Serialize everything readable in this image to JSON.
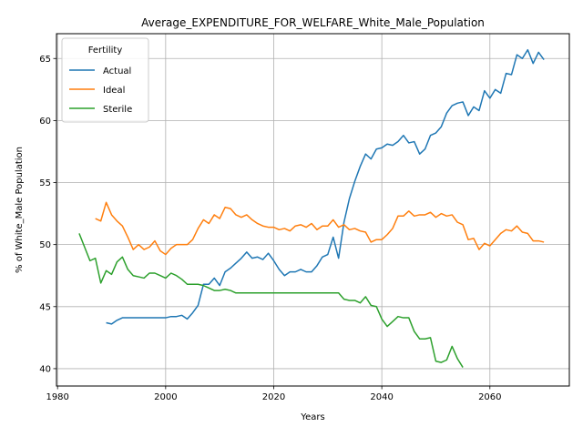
{
  "chart_data": {
    "type": "line",
    "title": "Average_EXPENDITURE_FOR_WELFARE_White_Male_Population",
    "xlabel": "Years",
    "ylabel": "% of White_Male Population",
    "xlim": [
      1979.8,
      2074.7
    ],
    "ylim": [
      38.6,
      67.0
    ],
    "xticks": [
      1980,
      2000,
      2020,
      2040,
      2060
    ],
    "yticks": [
      40,
      45,
      50,
      55,
      60,
      65
    ],
    "grid": true,
    "legend": {
      "title": "Fertility",
      "position": "top-left"
    },
    "series": [
      {
        "name": "Actual",
        "color": "#1f77b4",
        "x": [
          1989,
          1990,
          1991,
          1992,
          1993,
          1994,
          1995,
          1996,
          1997,
          1998,
          1999,
          2000,
          2001,
          2002,
          2003,
          2004,
          2005,
          2006,
          2007,
          2008,
          2009,
          2010,
          2011,
          2012,
          2013,
          2014,
          2015,
          2016,
          2017,
          2018,
          2019,
          2020,
          2021,
          2022,
          2023,
          2024,
          2025,
          2026,
          2027,
          2028,
          2029,
          2030,
          2031,
          2032,
          2033,
          2034,
          2035,
          2036,
          2037,
          2038,
          2039,
          2040,
          2041,
          2042,
          2043,
          2044,
          2045,
          2046,
          2047,
          2048,
          2049,
          2050,
          2051,
          2052,
          2053,
          2054,
          2055,
          2056,
          2057,
          2058,
          2059,
          2060,
          2061,
          2062,
          2063,
          2064,
          2065,
          2066,
          2067,
          2068,
          2069,
          2070
        ],
        "values": [
          43.7,
          43.6,
          43.9,
          44.1,
          44.1,
          44.1,
          44.1,
          44.1,
          44.1,
          44.1,
          44.1,
          44.1,
          44.2,
          44.2,
          44.3,
          44.0,
          44.5,
          45.1,
          46.8,
          46.8,
          47.3,
          46.7,
          47.8,
          48.1,
          48.5,
          48.9,
          49.4,
          48.9,
          49.0,
          48.8,
          49.3,
          48.7,
          48.0,
          47.5,
          47.8,
          47.8,
          48.0,
          47.8,
          47.8,
          48.3,
          49.0,
          49.2,
          50.6,
          48.9,
          51.8,
          53.7,
          55.1,
          56.3,
          57.3,
          56.9,
          57.7,
          57.8,
          58.1,
          58.0,
          58.3,
          58.8,
          58.2,
          58.3,
          57.3,
          57.7,
          58.8,
          59.0,
          59.5,
          60.6,
          61.2,
          61.4,
          61.5,
          60.4,
          61.1,
          60.8,
          62.4,
          61.8,
          62.5,
          62.2,
          63.8,
          63.7,
          65.3,
          65.0,
          65.7,
          64.6,
          65.5,
          64.9
        ]
      },
      {
        "name": "Ideal",
        "color": "#ff7f0e",
        "x": [
          1987,
          1988,
          1989,
          1990,
          1991,
          1992,
          1993,
          1994,
          1995,
          1996,
          1997,
          1998,
          1999,
          2000,
          2001,
          2002,
          2003,
          2004,
          2005,
          2006,
          2007,
          2008,
          2009,
          2010,
          2011,
          2012,
          2013,
          2014,
          2015,
          2016,
          2017,
          2018,
          2019,
          2020,
          2021,
          2022,
          2023,
          2024,
          2025,
          2026,
          2027,
          2028,
          2029,
          2030,
          2031,
          2032,
          2033,
          2034,
          2035,
          2036,
          2037,
          2038,
          2039,
          2040,
          2041,
          2042,
          2043,
          2044,
          2045,
          2046,
          2047,
          2048,
          2049,
          2050,
          2051,
          2052,
          2053,
          2054,
          2055,
          2056,
          2057,
          2058,
          2059,
          2060,
          2061,
          2062,
          2063,
          2064,
          2065,
          2066,
          2067,
          2068,
          2069,
          2070
        ],
        "values": [
          52.1,
          51.9,
          53.4,
          52.4,
          51.9,
          51.5,
          50.6,
          49.6,
          50.0,
          49.6,
          49.8,
          50.3,
          49.5,
          49.2,
          49.7,
          50.0,
          50.0,
          50.0,
          50.4,
          51.3,
          52.0,
          51.7,
          52.4,
          52.1,
          53.0,
          52.9,
          52.4,
          52.2,
          52.4,
          52.0,
          51.7,
          51.5,
          51.4,
          51.4,
          51.2,
          51.3,
          51.1,
          51.5,
          51.6,
          51.4,
          51.7,
          51.2,
          51.5,
          51.5,
          52.0,
          51.4,
          51.6,
          51.2,
          51.3,
          51.1,
          51.0,
          50.2,
          50.4,
          50.4,
          50.8,
          51.3,
          52.3,
          52.3,
          52.7,
          52.3,
          52.4,
          52.4,
          52.6,
          52.2,
          52.5,
          52.3,
          52.4,
          51.8,
          51.6,
          50.4,
          50.5,
          49.6,
          50.1,
          49.9,
          50.4,
          50.9,
          51.2,
          51.1,
          51.5,
          51.0,
          50.9,
          50.3,
          50.3,
          50.2
        ]
      },
      {
        "name": "Sterile",
        "color": "#2ca02c",
        "x": [
          1984,
          1985,
          1986,
          1987,
          1988,
          1989,
          1990,
          1991,
          1992,
          1993,
          1994,
          1995,
          1996,
          1997,
          1998,
          1999,
          2000,
          2001,
          2002,
          2003,
          2004,
          2005,
          2006,
          2007,
          2008,
          2009,
          2010,
          2011,
          2012,
          2013,
          2014,
          2015,
          2016,
          2017,
          2018,
          2019,
          2020,
          2021,
          2022,
          2023,
          2024,
          2025,
          2026,
          2027,
          2028,
          2029,
          2030,
          2031,
          2032,
          2033,
          2034,
          2035,
          2036,
          2037,
          2038,
          2039,
          2040,
          2041,
          2042,
          2043,
          2044,
          2045,
          2046,
          2047,
          2048,
          2049,
          2050,
          2051,
          2052,
          2053,
          2054,
          2055
        ],
        "values": [
          50.9,
          49.8,
          48.7,
          48.9,
          46.9,
          47.9,
          47.6,
          48.6,
          49.0,
          48.0,
          47.5,
          47.4,
          47.3,
          47.7,
          47.7,
          47.5,
          47.3,
          47.7,
          47.5,
          47.2,
          46.8,
          46.8,
          46.8,
          46.7,
          46.5,
          46.3,
          46.3,
          46.4,
          46.3,
          46.1,
          46.1,
          46.1,
          46.1,
          46.1,
          46.1,
          46.1,
          46.1,
          46.1,
          46.1,
          46.1,
          46.1,
          46.1,
          46.1,
          46.1,
          46.1,
          46.1,
          46.1,
          46.1,
          46.1,
          45.6,
          45.5,
          45.5,
          45.3,
          45.8,
          45.1,
          45.0,
          44.0,
          43.4,
          43.8,
          44.2,
          44.1,
          44.1,
          43.0,
          42.4,
          42.4,
          42.5,
          40.6,
          40.5,
          40.7,
          41.8,
          40.8,
          40.1
        ]
      }
    ]
  }
}
